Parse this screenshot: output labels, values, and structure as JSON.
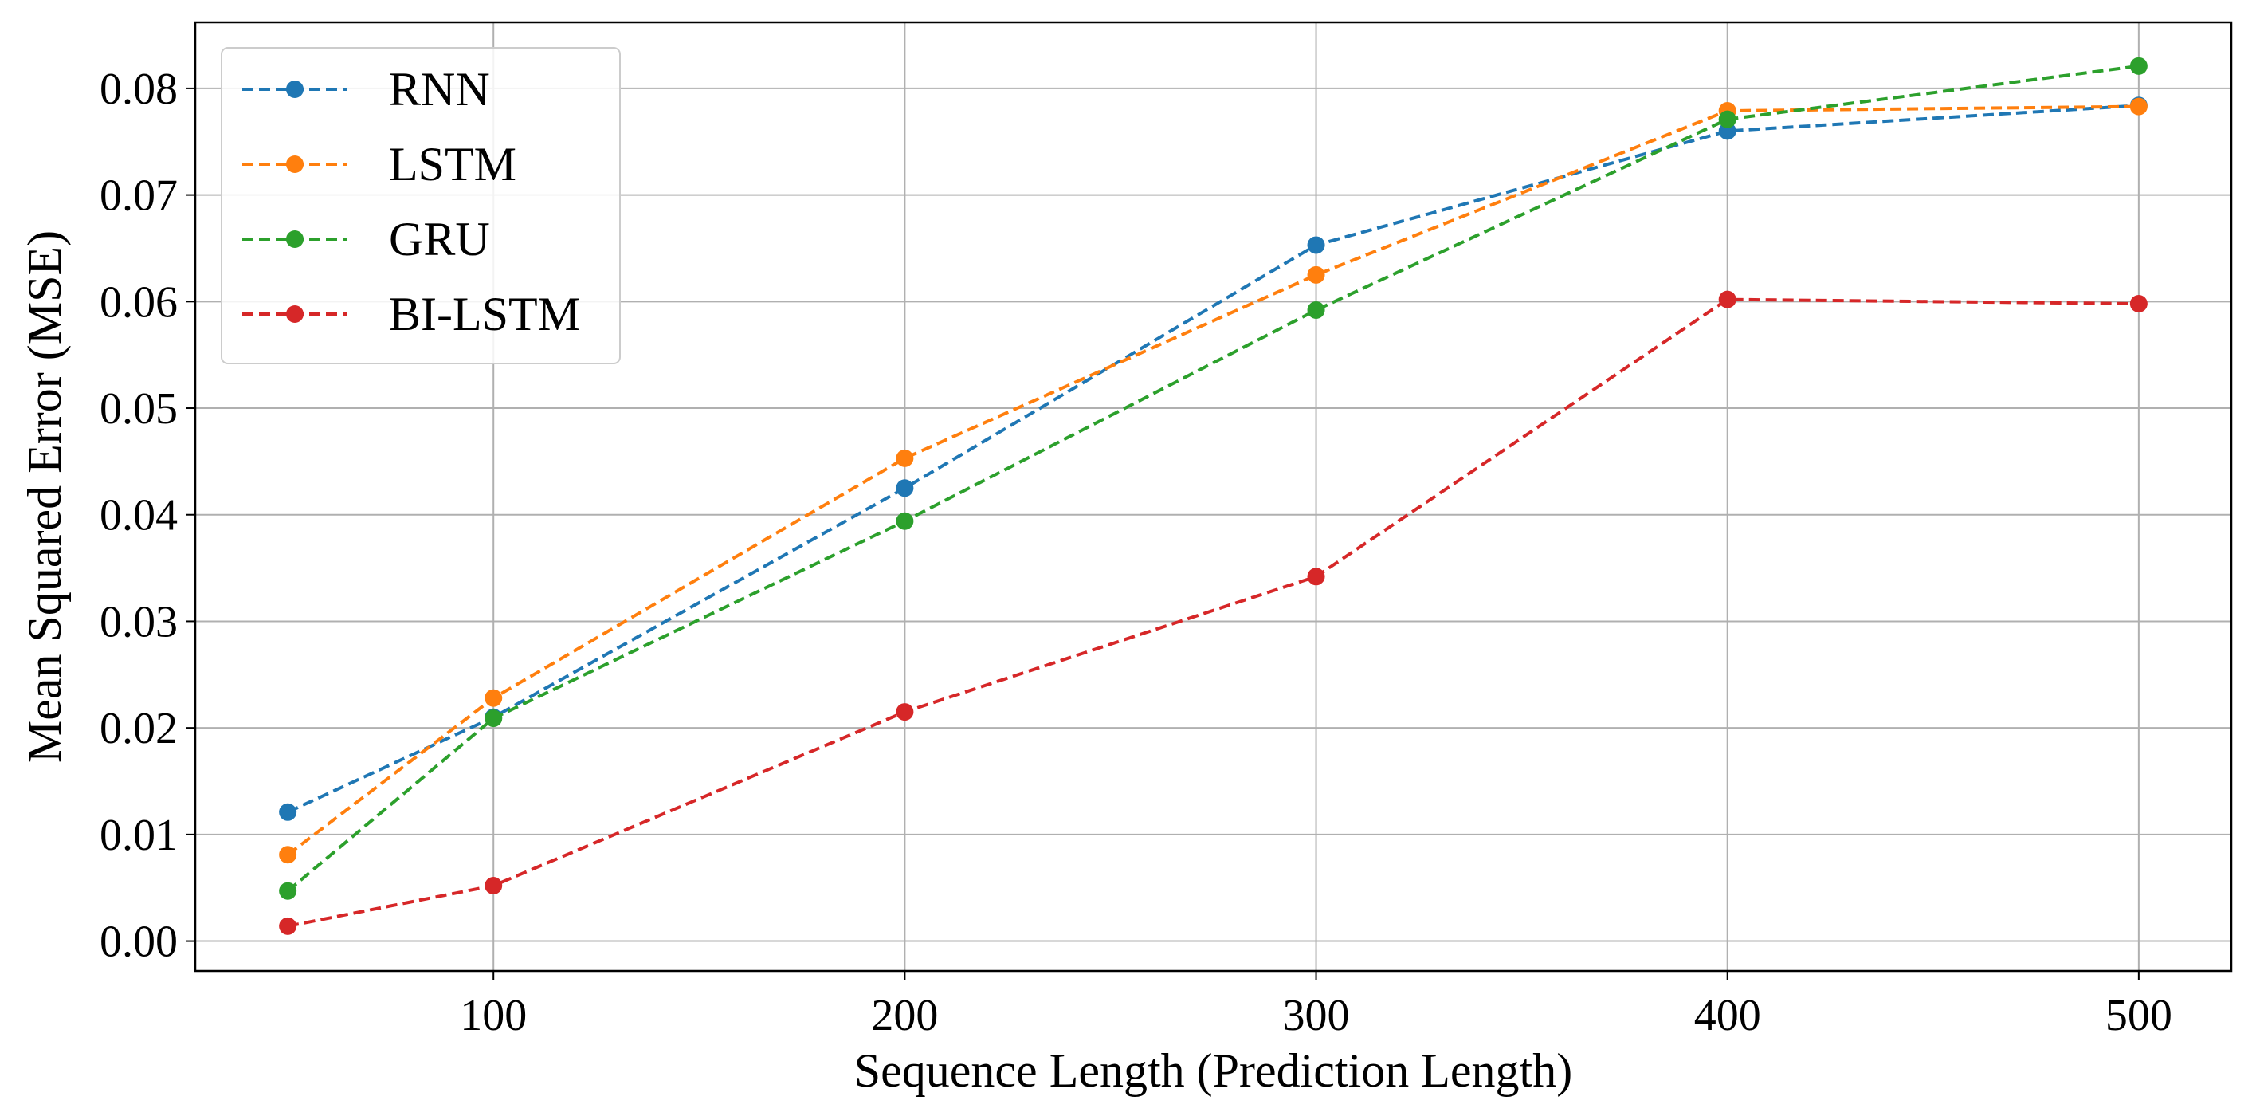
{
  "chart_data": {
    "type": "line",
    "title": "",
    "xlabel": "Sequence Length (Prediction Length)",
    "ylabel": "Mean Squared Error (MSE)",
    "x": [
      50,
      100,
      200,
      300,
      400,
      500
    ],
    "xticks": [
      100,
      200,
      300,
      400,
      500
    ],
    "xtick_labels": [
      "100",
      "200",
      "300",
      "400",
      "500"
    ],
    "yticks": [
      0.0,
      0.01,
      0.02,
      0.03,
      0.04,
      0.05,
      0.06,
      0.07,
      0.08
    ],
    "ytick_labels": [
      "0.00",
      "0.01",
      "0.02",
      "0.03",
      "0.04",
      "0.05",
      "0.06",
      "0.07",
      "0.08"
    ],
    "xlim": [
      27.5,
      522.5
    ],
    "ylim": [
      -0.0028,
      0.0862
    ],
    "grid": true,
    "legend_position": "top-left",
    "line_style": "dashed",
    "marker": "circle",
    "series": [
      {
        "name": "RNN",
        "color": "#1f77b4",
        "values": [
          0.0121,
          0.021,
          0.0425,
          0.0653,
          0.076,
          0.0784
        ]
      },
      {
        "name": "LSTM",
        "color": "#ff7f0e",
        "values": [
          0.0081,
          0.0228,
          0.0453,
          0.0625,
          0.0779,
          0.0783
        ]
      },
      {
        "name": "GRU",
        "color": "#2ca02c",
        "values": [
          0.0047,
          0.0209,
          0.0394,
          0.0592,
          0.0771,
          0.0821
        ]
      },
      {
        "name": "BI-LSTM",
        "color": "#d62728",
        "values": [
          0.0014,
          0.0052,
          0.0215,
          0.0342,
          0.0602,
          0.0598
        ]
      }
    ]
  }
}
